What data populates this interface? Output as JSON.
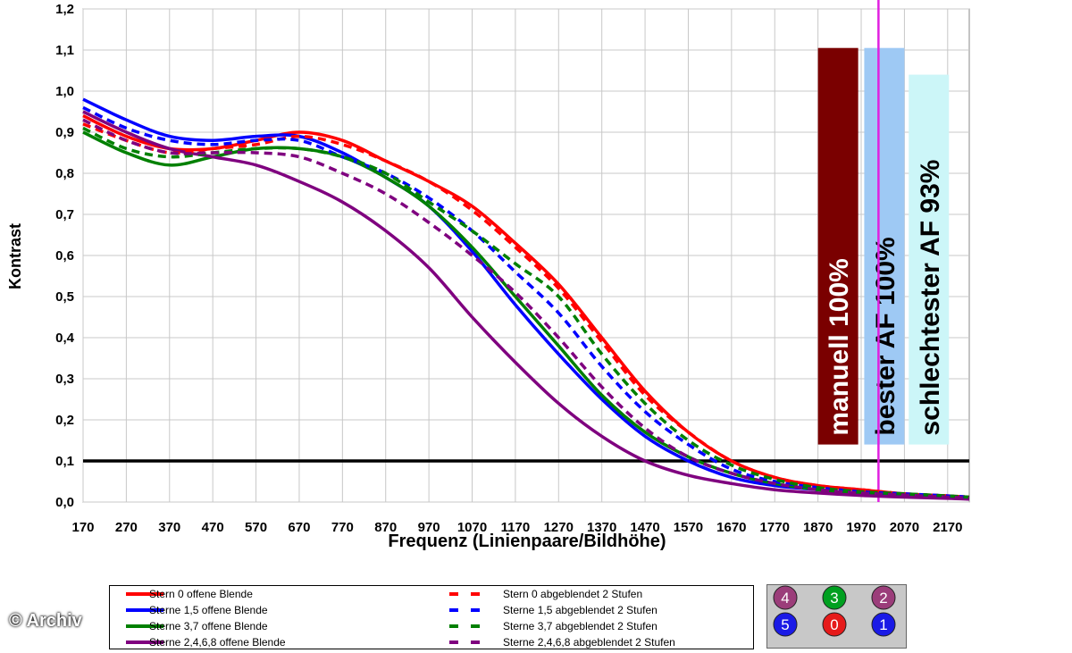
{
  "chart_data": {
    "type": "line",
    "xlabel": "Frequenz (Linienpaare/Bildhöhe)",
    "ylabel": "Kontrast",
    "xlim": [
      170,
      2220
    ],
    "ylim": [
      0,
      1.2
    ],
    "x_ticks": [
      "170",
      "270",
      "370",
      "470",
      "570",
      "670",
      "770",
      "870",
      "970",
      "1070",
      "1170",
      "1270",
      "1370",
      "1470",
      "1570",
      "1670",
      "1770",
      "1870",
      "1970",
      "2070",
      "2170"
    ],
    "y_ticks": [
      "0,0",
      "0,1",
      "0,2",
      "0,3",
      "0,4",
      "0,5",
      "0,6",
      "0,7",
      "0,8",
      "0,9",
      "1,0",
      "1,1",
      "1,2"
    ],
    "grid": true,
    "reference_line": {
      "y": 0.1,
      "color": "#000000"
    },
    "marker_line": {
      "x": 2010,
      "color": "#e020e0"
    },
    "bars": [
      {
        "label": "manuell 100%",
        "x0": 1870,
        "x1": 1963,
        "top": 1.105,
        "bottom": 0.14,
        "color": "#7a0000",
        "text_color": "#ffffff"
      },
      {
        "label": "bester AF 100%",
        "x0": 1977,
        "x1": 2070,
        "top": 1.105,
        "bottom": 0.14,
        "color": "#9ec9f4",
        "text_color": "#000000"
      },
      {
        "label": "schlechtester AF 93%",
        "x0": 2080,
        "x1": 2173,
        "top": 1.04,
        "bottom": 0.14,
        "color": "#ccf6f8",
        "text_color": "#000000"
      }
    ],
    "x": [
      170,
      270,
      370,
      470,
      570,
      670,
      770,
      870,
      970,
      1070,
      1170,
      1270,
      1370,
      1470,
      1570,
      1670,
      1770,
      1870,
      1970,
      2070,
      2170,
      2220
    ],
    "series": [
      {
        "name": "Stern 0 offene Blende",
        "color": "#ff0000",
        "dash": false,
        "values": [
          0.94,
          0.89,
          0.86,
          0.86,
          0.88,
          0.9,
          0.88,
          0.83,
          0.78,
          0.72,
          0.63,
          0.53,
          0.4,
          0.27,
          0.17,
          0.1,
          0.06,
          0.04,
          0.03,
          0.02,
          0.015,
          0.012
        ]
      },
      {
        "name": "Sterne 1,5 offene Blende",
        "color": "#0000ff",
        "dash": false,
        "values": [
          0.98,
          0.93,
          0.89,
          0.88,
          0.89,
          0.89,
          0.85,
          0.79,
          0.72,
          0.61,
          0.48,
          0.36,
          0.25,
          0.16,
          0.1,
          0.06,
          0.04,
          0.03,
          0.02,
          0.015,
          0.01,
          0.008
        ]
      },
      {
        "name": "Sterne 3,7 offene Blende",
        "color": "#008000",
        "dash": false,
        "values": [
          0.9,
          0.85,
          0.82,
          0.84,
          0.86,
          0.86,
          0.84,
          0.79,
          0.72,
          0.62,
          0.5,
          0.38,
          0.26,
          0.17,
          0.11,
          0.07,
          0.045,
          0.03,
          0.02,
          0.015,
          0.01,
          0.008
        ]
      },
      {
        "name": "Sterne 2,4,6,8 offene Blende",
        "color": "#7f007f",
        "dash": false,
        "values": [
          0.95,
          0.9,
          0.86,
          0.84,
          0.82,
          0.78,
          0.73,
          0.66,
          0.57,
          0.45,
          0.34,
          0.24,
          0.16,
          0.1,
          0.065,
          0.045,
          0.03,
          0.022,
          0.016,
          0.012,
          0.009,
          0.007
        ]
      },
      {
        "name": "Stern 0 abgeblendet 2 Stufen",
        "color": "#ff0000",
        "dash": true,
        "values": [
          0.92,
          0.88,
          0.85,
          0.86,
          0.87,
          0.89,
          0.87,
          0.83,
          0.78,
          0.71,
          0.62,
          0.52,
          0.39,
          0.26,
          0.17,
          0.1,
          0.06,
          0.04,
          0.03,
          0.02,
          0.015,
          0.012
        ]
      },
      {
        "name": "Sterne 1,5 abgeblendet 2 Stufen",
        "color": "#0000ff",
        "dash": true,
        "values": [
          0.96,
          0.91,
          0.88,
          0.87,
          0.88,
          0.88,
          0.84,
          0.8,
          0.74,
          0.66,
          0.56,
          0.46,
          0.33,
          0.22,
          0.14,
          0.08,
          0.05,
          0.035,
          0.025,
          0.02,
          0.015,
          0.012
        ]
      },
      {
        "name": "Sterne 3,7 abgeblendet 2 Stufen",
        "color": "#008000",
        "dash": true,
        "values": [
          0.91,
          0.86,
          0.84,
          0.85,
          0.86,
          0.86,
          0.84,
          0.8,
          0.73,
          0.66,
          0.58,
          0.5,
          0.36,
          0.24,
          0.15,
          0.09,
          0.055,
          0.035,
          0.025,
          0.02,
          0.015,
          0.012
        ]
      },
      {
        "name": "Sterne 2,4,6,8 abgeblendet 2 Stufen",
        "color": "#7f007f",
        "dash": true,
        "values": [
          0.93,
          0.88,
          0.85,
          0.85,
          0.85,
          0.84,
          0.8,
          0.75,
          0.68,
          0.6,
          0.51,
          0.4,
          0.28,
          0.18,
          0.11,
          0.07,
          0.045,
          0.03,
          0.022,
          0.017,
          0.012,
          0.01
        ]
      }
    ]
  },
  "stars": {
    "row1": [
      {
        "num": "4",
        "color": "#9b3d7a"
      },
      {
        "num": "3",
        "color": "#00a020"
      },
      {
        "num": "2",
        "color": "#9b3d7a"
      }
    ],
    "row2": [
      {
        "num": "5",
        "color": "#1a1ae6"
      },
      {
        "num": "0",
        "color": "#e61a1a"
      },
      {
        "num": "1",
        "color": "#1a1ae6"
      }
    ]
  },
  "watermark": "© Archiv"
}
